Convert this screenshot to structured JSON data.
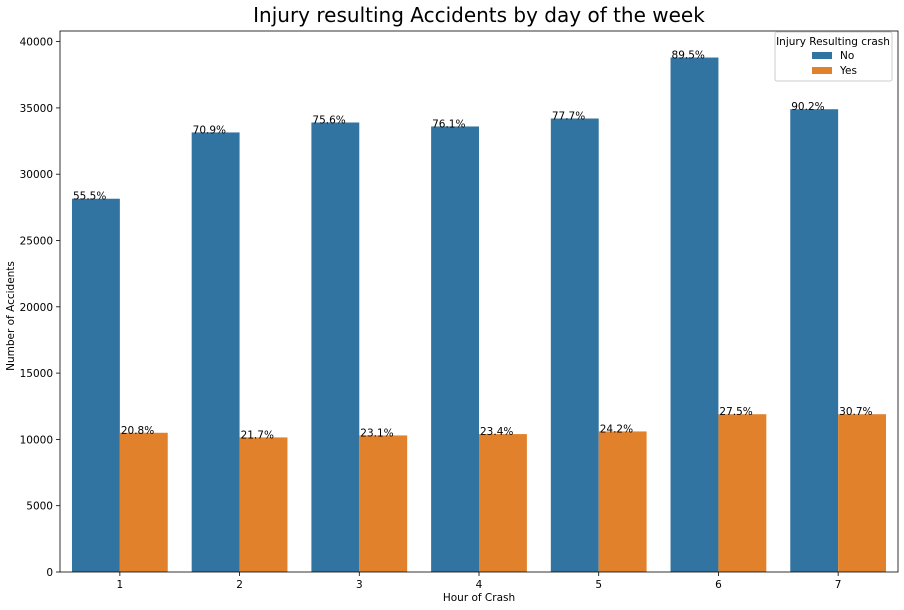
{
  "chart_data": {
    "type": "bar",
    "title": "Injury resulting Accidents by day of the week",
    "xlabel": "Hour of Crash",
    "ylabel": "Number of Accidents",
    "categories": [
      "1",
      "2",
      "3",
      "4",
      "5",
      "6",
      "7"
    ],
    "ylim": [
      0,
      40800
    ],
    "yticks": [
      0,
      5000,
      10000,
      15000,
      20000,
      25000,
      30000,
      35000,
      40000
    ],
    "grid": false,
    "legend": {
      "title": "Injury Resulting crash",
      "placement": "top-right"
    },
    "series": [
      {
        "name": "No",
        "color": "#3274a1",
        "values": [
          28150,
          33150,
          33900,
          33600,
          34200,
          38800,
          34900
        ],
        "labels": [
          "55.5%",
          "70.9%",
          "75.6%",
          "76.1%",
          "77.7%",
          "89.5%",
          "90.2%"
        ]
      },
      {
        "name": "Yes",
        "color": "#e1812c",
        "values": [
          10500,
          10150,
          10300,
          10400,
          10600,
          11900,
          11900
        ],
        "labels": [
          "20.8%",
          "21.7%",
          "23.1%",
          "23.4%",
          "24.2%",
          "27.5%",
          "30.7%"
        ]
      }
    ]
  }
}
